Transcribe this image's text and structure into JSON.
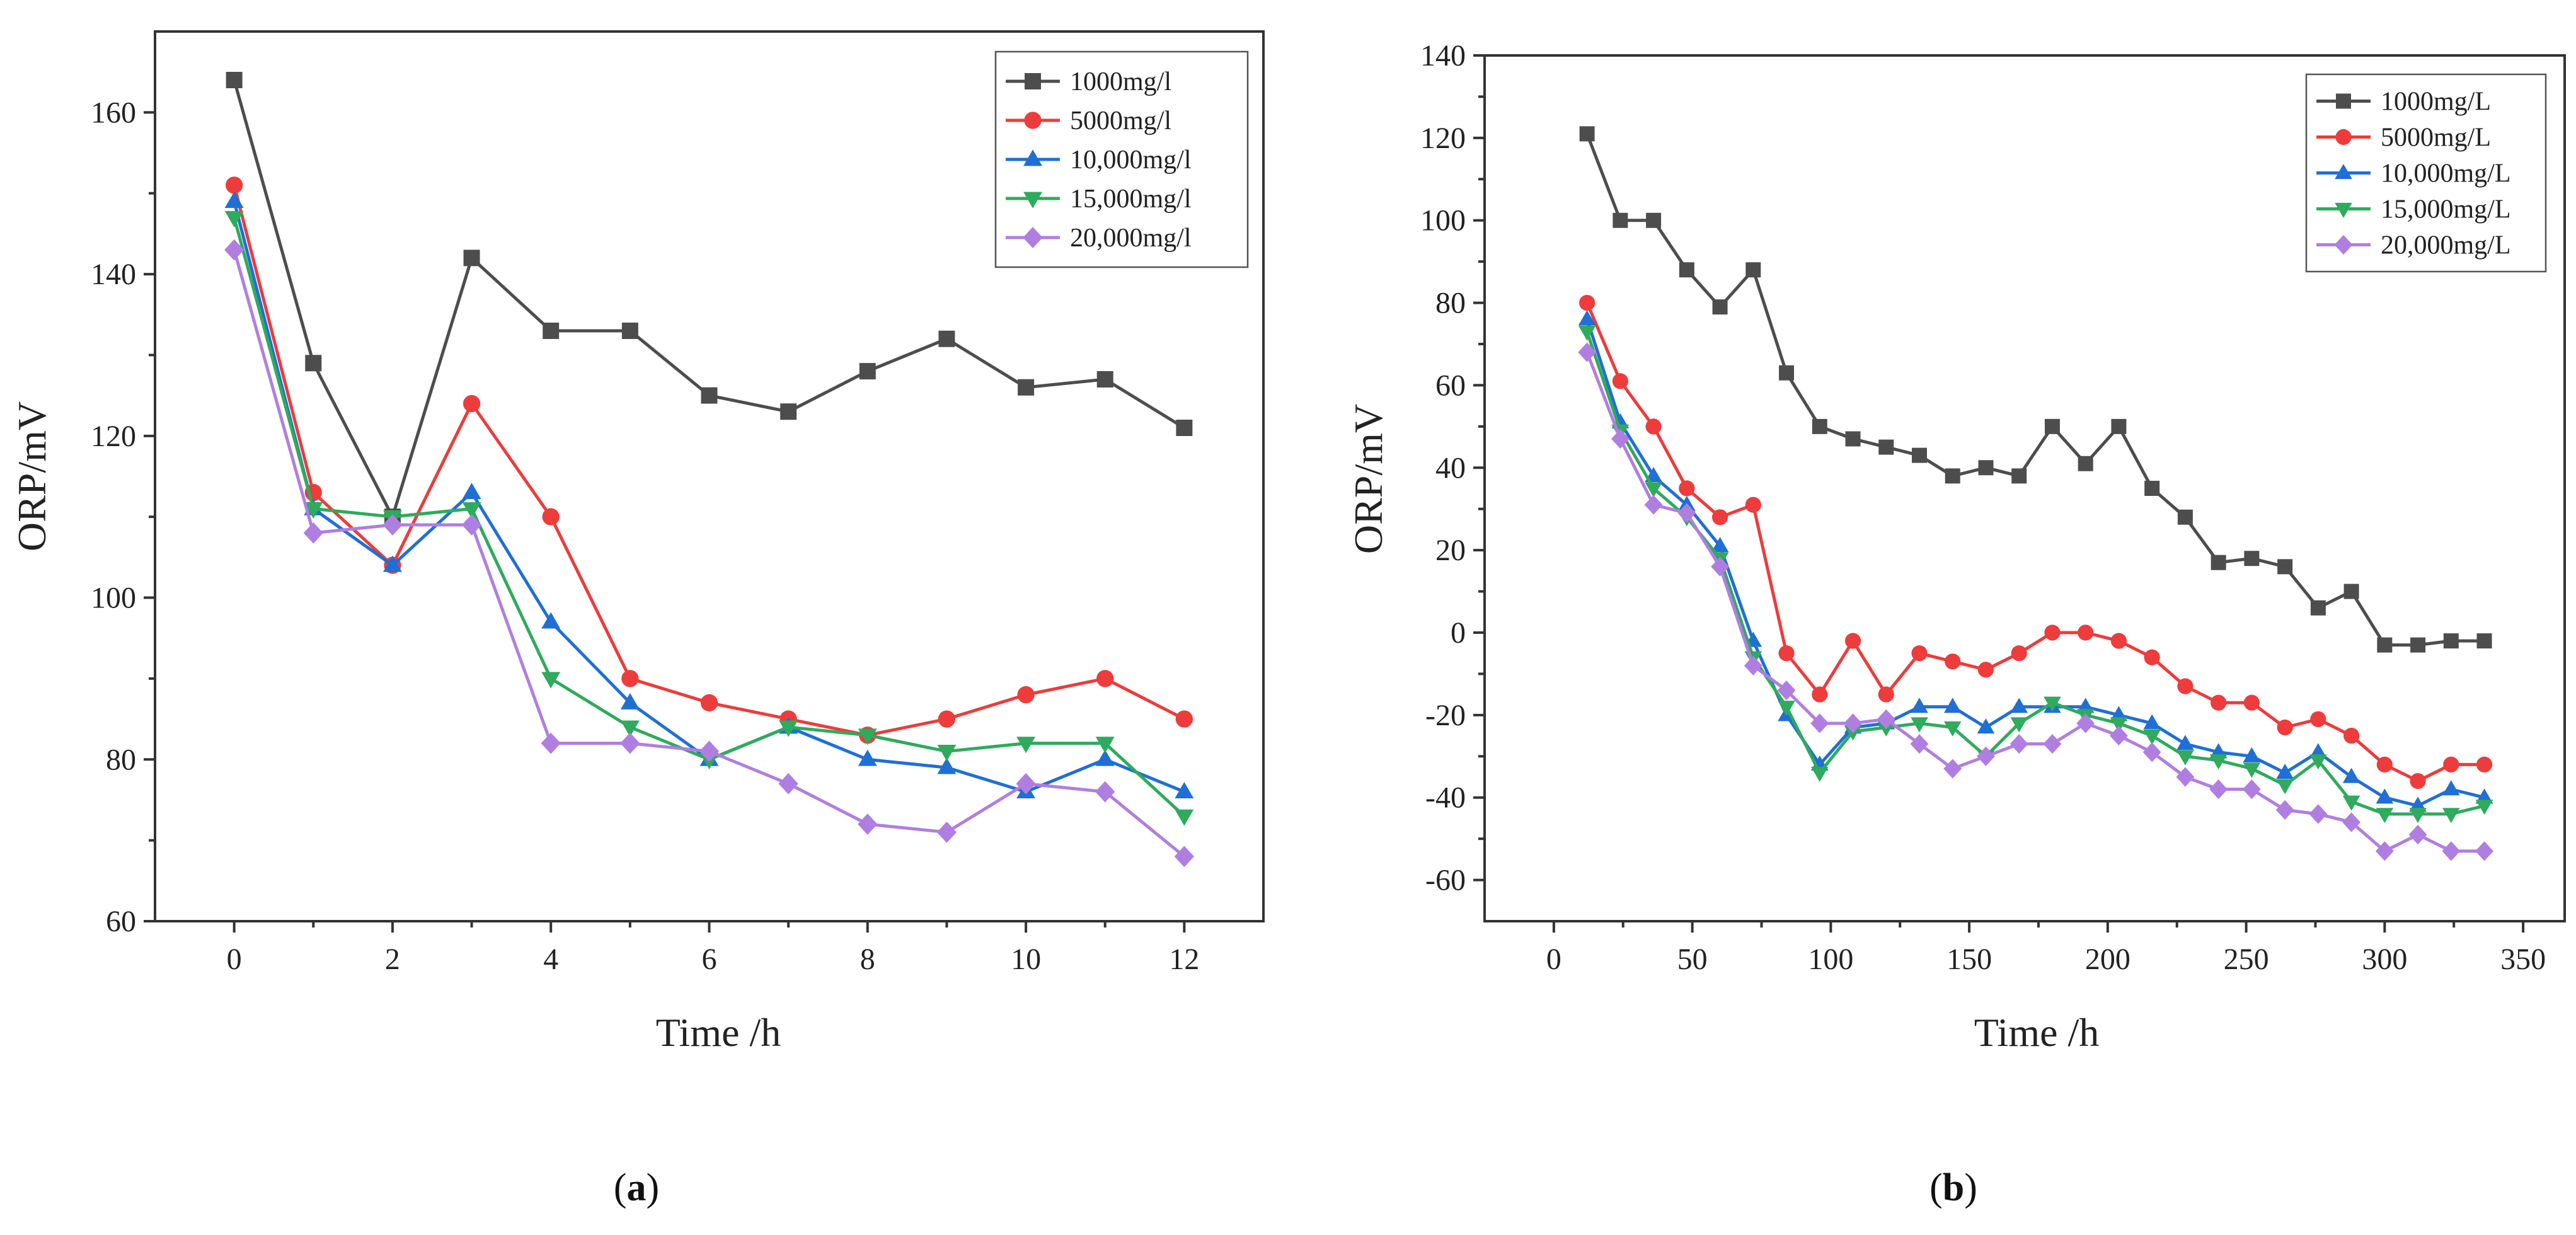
{
  "chart_data": [
    {
      "type": "line",
      "panel_label": "(a)",
      "panel_letter": "a",
      "xlabel": "Time /h",
      "ylabel": "ORP/mV",
      "xlim": [
        -1,
        13
      ],
      "ylim": [
        60,
        170
      ],
      "xticks": [
        0,
        2,
        4,
        6,
        8,
        10,
        12
      ],
      "yticks": [
        60,
        80,
        100,
        120,
        140,
        160
      ],
      "legend_position": "top-right",
      "series": [
        {
          "name": "1000mg/l",
          "color": "#4d4d4d",
          "marker": "square",
          "x": [
            0,
            1,
            2,
            3,
            4,
            5,
            6,
            7,
            8,
            9,
            10,
            11,
            12
          ],
          "values": [
            164,
            129,
            110,
            142,
            133,
            133,
            125,
            123,
            128,
            132,
            126,
            127,
            121
          ]
        },
        {
          "name": "5000mg/l",
          "color": "#ee3b3b",
          "marker": "circle",
          "x": [
            0,
            1,
            2,
            3,
            4,
            5,
            6,
            7,
            8,
            9,
            10,
            11,
            12
          ],
          "values": [
            151,
            113,
            104,
            124,
            110,
            90,
            87,
            85,
            83,
            85,
            88,
            90,
            85
          ]
        },
        {
          "name": "10,000mg/l",
          "color": "#1f6fd6",
          "marker": "triangle-up",
          "x": [
            0,
            1,
            2,
            3,
            4,
            5,
            6,
            7,
            8,
            9,
            10,
            11,
            12
          ],
          "values": [
            149,
            111,
            104,
            113,
            97,
            87,
            80,
            84,
            80,
            79,
            76,
            80,
            76
          ]
        },
        {
          "name": "15,000mg/l",
          "color": "#2eab5c",
          "marker": "triangle-down",
          "x": [
            0,
            1,
            2,
            3,
            4,
            5,
            6,
            7,
            8,
            9,
            10,
            11,
            12
          ],
          "values": [
            147,
            111,
            110,
            111,
            90,
            84,
            80,
            84,
            83,
            81,
            82,
            82,
            73
          ]
        },
        {
          "name": "20,000mg/l",
          "color": "#b07ee0",
          "marker": "diamond",
          "x": [
            0,
            1,
            2,
            3,
            4,
            5,
            6,
            7,
            8,
            9,
            10,
            11,
            12
          ],
          "values": [
            143,
            108,
            109,
            109,
            82,
            82,
            81,
            77,
            72,
            71,
            77,
            76,
            68
          ]
        }
      ]
    },
    {
      "type": "line",
      "panel_label": "(b)",
      "panel_letter": "b",
      "xlabel": "Time /h",
      "ylabel": "ORP/mV",
      "xlim": [
        -25,
        365
      ],
      "ylim": [
        -70,
        140
      ],
      "xticks": [
        0,
        50,
        100,
        150,
        200,
        250,
        300,
        350
      ],
      "yticks": [
        -60,
        -40,
        -20,
        0,
        20,
        40,
        60,
        80,
        100,
        120,
        140
      ],
      "legend_position": "top-right",
      "series": [
        {
          "name": "1000mg/L",
          "color": "#4d4d4d",
          "marker": "square",
          "x": [
            12,
            24,
            36,
            48,
            60,
            72,
            84,
            96,
            108,
            120,
            132,
            144,
            156,
            168,
            180,
            192,
            204,
            216,
            228,
            240,
            252,
            264,
            276,
            288,
            300,
            312,
            324,
            336
          ],
          "values": [
            121,
            100,
            100,
            88,
            79,
            88,
            63,
            50,
            47,
            45,
            43,
            38,
            40,
            38,
            50,
            41,
            50,
            35,
            28,
            17,
            18,
            16,
            6,
            10,
            -3,
            -3,
            -2,
            -2
          ]
        },
        {
          "name": "5000mg/L",
          "color": "#ee3b3b",
          "marker": "circle",
          "x": [
            12,
            24,
            36,
            48,
            60,
            72,
            84,
            96,
            108,
            120,
            132,
            144,
            156,
            168,
            180,
            192,
            204,
            216,
            228,
            240,
            252,
            264,
            276,
            288,
            300,
            312,
            324,
            336
          ],
          "values": [
            80,
            61,
            50,
            35,
            28,
            31,
            -5,
            -15,
            -2,
            -15,
            -5,
            -7,
            -9,
            -5,
            0,
            0,
            -2,
            -6,
            -13,
            -17,
            -17,
            -23,
            -21,
            -25,
            -32,
            -36,
            -32,
            -32
          ]
        },
        {
          "name": "10,000mg/L",
          "color": "#1f6fd6",
          "marker": "triangle-up",
          "x": [
            12,
            24,
            36,
            48,
            60,
            72,
            84,
            96,
            108,
            120,
            132,
            144,
            156,
            168,
            180,
            192,
            204,
            216,
            228,
            240,
            252,
            264,
            276,
            288,
            300,
            312,
            324,
            336
          ],
          "values": [
            76,
            51,
            38,
            31,
            21,
            -2,
            -20,
            -32,
            -23,
            -22,
            -18,
            -18,
            -23,
            -18,
            -18,
            -18,
            -20,
            -22,
            -27,
            -29,
            -30,
            -34,
            -29,
            -35,
            -40,
            -42,
            -38,
            -40
          ]
        },
        {
          "name": "15,000mg/L",
          "color": "#2eab5c",
          "marker": "triangle-down",
          "x": [
            12,
            24,
            36,
            48,
            60,
            72,
            84,
            96,
            108,
            120,
            132,
            144,
            156,
            168,
            180,
            192,
            204,
            216,
            228,
            240,
            252,
            264,
            276,
            288,
            300,
            312,
            324,
            336
          ],
          "values": [
            73,
            49,
            35,
            28,
            18,
            -6,
            -18,
            -34,
            -24,
            -23,
            -22,
            -23,
            -30,
            -22,
            -17,
            -20,
            -22,
            -25,
            -30,
            -31,
            -33,
            -37,
            -31,
            -41,
            -44,
            -44,
            -44,
            -42
          ]
        },
        {
          "name": "20,000mg/L",
          "color": "#b07ee0",
          "marker": "diamond",
          "x": [
            12,
            24,
            36,
            48,
            60,
            72,
            84,
            96,
            108,
            120,
            132,
            144,
            156,
            168,
            180,
            192,
            204,
            216,
            228,
            240,
            252,
            264,
            276,
            288,
            300,
            312,
            324,
            336
          ],
          "values": [
            68,
            47,
            31,
            29,
            16,
            -8,
            -14,
            -22,
            -22,
            -21,
            -27,
            -33,
            -30,
            -27,
            -27,
            -22,
            -25,
            -29,
            -35,
            -38,
            -38,
            -43,
            -44,
            -46,
            -53,
            -49,
            -53,
            -53
          ]
        }
      ]
    }
  ]
}
